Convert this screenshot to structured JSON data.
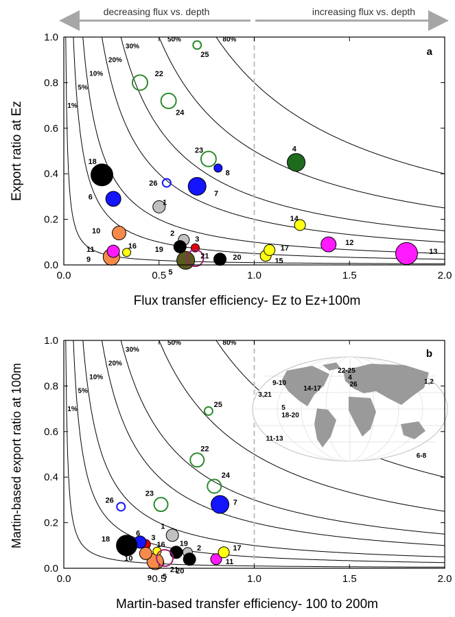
{
  "header": {
    "left": "decreasing flux vs. depth",
    "right": "increasing flux vs. depth",
    "arrow_color": "#a6a6a6"
  },
  "colors": {
    "black": "#000000",
    "gray": "#c0c0c0",
    "blue": "#1414ff",
    "orange": "#f58a4b",
    "magenta": "#ff1aff",
    "yellow": "#ffff10",
    "green": "#2b8a2b",
    "darkgreen": "#1e6b1e",
    "olive": "#5a5a1e",
    "red": "#e00000",
    "purple": "#9c1f70"
  },
  "chart_data": [
    {
      "type": "scatter",
      "panel": "a",
      "xlabel": "Flux transfer efficiency- Ez to Ez+100m",
      "ylabel": "Export ratio at Ez",
      "xlim": [
        0,
        2
      ],
      "ylim": [
        0,
        1
      ],
      "xticks": [
        "0.0",
        "0.5",
        "1.0",
        "1.5",
        "2.0"
      ],
      "yticks": [
        "0.0",
        "0.2",
        "0.4",
        "0.6",
        "0.8",
        "1.0"
      ],
      "vline": 1.0,
      "isolines": [
        {
          "value": 0.01,
          "label": "1%",
          "label_x": 0.045,
          "label_y": 0.69
        },
        {
          "value": 0.05,
          "label": "5%",
          "label_x": 0.1,
          "label_y": 0.77
        },
        {
          "value": 0.1,
          "label": "10%",
          "label_x": 0.17,
          "label_y": 0.83
        },
        {
          "value": 0.2,
          "label": "20%",
          "label_x": 0.27,
          "label_y": 0.89
        },
        {
          "value": 0.3,
          "label": "30%",
          "label_x": 0.36,
          "label_y": 0.95
        },
        {
          "value": 0.5,
          "label": "50%",
          "label_x": 0.58,
          "label_y": 0.98
        },
        {
          "value": 0.8,
          "label": "80%",
          "label_x": 0.87,
          "label_y": 0.98
        }
      ],
      "points": [
        {
          "id": "1",
          "x": 0.5,
          "y": 0.255,
          "size": 9,
          "color": "gray",
          "filled": true,
          "lx": 0.03,
          "ly": 0.02
        },
        {
          "id": "2",
          "x": 0.63,
          "y": 0.11,
          "size": 8,
          "color": "gray",
          "filled": true,
          "lx": -0.06,
          "ly": 0.03
        },
        {
          "id": "3",
          "x": 0.69,
          "y": 0.075,
          "size": 6,
          "color": "red",
          "filled": true,
          "lx": 0.01,
          "ly": 0.04
        },
        {
          "id": "4",
          "x": 1.22,
          "y": 0.45,
          "size": 13,
          "color": "darkgreen",
          "filled": true,
          "lx": -0.01,
          "ly": 0.06
        },
        {
          "id": "5",
          "x": 0.64,
          "y": 0.02,
          "size": 13,
          "color": "olive",
          "filled": true,
          "lx": -0.08,
          "ly": -0.05
        },
        {
          "id": "6",
          "x": 0.26,
          "y": 0.29,
          "size": 11,
          "color": "blue",
          "filled": true,
          "lx": -0.12,
          "ly": 0.01
        },
        {
          "id": "7",
          "x": 0.7,
          "y": 0.345,
          "size": 13,
          "color": "blue",
          "filled": true,
          "lx": 0.1,
          "ly": -0.03
        },
        {
          "id": "8",
          "x": 0.81,
          "y": 0.425,
          "size": 6,
          "color": "blue",
          "filled": true,
          "lx": 0.05,
          "ly": -0.02
        },
        {
          "id": "9",
          "x": 0.25,
          "y": 0.035,
          "size": 12,
          "color": "orange",
          "filled": true,
          "lx": -0.12,
          "ly": -0.01
        },
        {
          "id": "10",
          "x": 0.29,
          "y": 0.14,
          "size": 10,
          "color": "orange",
          "filled": true,
          "lx": -0.12,
          "ly": 0.01
        },
        {
          "id": "11",
          "x": 0.26,
          "y": 0.06,
          "size": 9,
          "color": "magenta",
          "filled": true,
          "lx": -0.12,
          "ly": 0.01
        },
        {
          "id": "12",
          "x": 1.39,
          "y": 0.09,
          "size": 11,
          "color": "magenta",
          "filled": true,
          "lx": 0.11,
          "ly": 0.01
        },
        {
          "id": "13",
          "x": 1.8,
          "y": 0.05,
          "size": 16,
          "color": "magenta",
          "filled": true,
          "lx": 0.14,
          "ly": 0.01
        },
        {
          "id": "14",
          "x": 1.24,
          "y": 0.175,
          "size": 8,
          "color": "yellow",
          "filled": true,
          "lx": -0.03,
          "ly": 0.03
        },
        {
          "id": "15",
          "x": 1.06,
          "y": 0.04,
          "size": 8,
          "color": "yellow",
          "filled": true,
          "lx": 0.07,
          "ly": -0.02
        },
        {
          "id": "16",
          "x": 0.33,
          "y": 0.055,
          "size": 6,
          "color": "yellow",
          "filled": true,
          "lx": 0.03,
          "ly": 0.03
        },
        {
          "id": "17",
          "x": 1.08,
          "y": 0.065,
          "size": 8,
          "color": "yellow",
          "filled": true,
          "lx": 0.08,
          "ly": 0.01
        },
        {
          "id": "18",
          "x": 0.2,
          "y": 0.395,
          "size": 16,
          "color": "black",
          "filled": true,
          "lx": -0.05,
          "ly": 0.06
        },
        {
          "id": "19",
          "x": 0.61,
          "y": 0.08,
          "size": 9,
          "color": "black",
          "filled": true,
          "lx": -0.11,
          "ly": -0.01
        },
        {
          "id": "20",
          "x": 0.82,
          "y": 0.025,
          "size": 9,
          "color": "black",
          "filled": true,
          "lx": 0.09,
          "ly": 0.01
        },
        {
          "id": "21",
          "x": 0.69,
          "y": 0.03,
          "size": 12,
          "color": "purple",
          "filled": false,
          "lx": 0.05,
          "ly": 0.01
        },
        {
          "id": "22",
          "x": 0.4,
          "y": 0.8,
          "size": 11,
          "color": "green",
          "filled": false,
          "lx": 0.1,
          "ly": 0.04
        },
        {
          "id": "23",
          "x": 0.76,
          "y": 0.465,
          "size": 11,
          "color": "green",
          "filled": false,
          "lx": -0.05,
          "ly": 0.04
        },
        {
          "id": "24",
          "x": 0.55,
          "y": 0.72,
          "size": 11,
          "color": "green",
          "filled": false,
          "lx": 0.06,
          "ly": -0.05
        },
        {
          "id": "25",
          "x": 0.7,
          "y": 0.965,
          "size": 6,
          "color": "green",
          "filled": false,
          "lx": 0.04,
          "ly": -0.04
        },
        {
          "id": "26",
          "x": 0.54,
          "y": 0.36,
          "size": 6,
          "color": "blue",
          "filled": false,
          "lx": -0.07,
          "ly": 0.0
        }
      ]
    },
    {
      "type": "scatter",
      "panel": "b",
      "xlabel": "Martin-based transfer efficiency- 100 to 200m",
      "ylabel": "Martin-based export ratio at 100m",
      "xlim": [
        0,
        2
      ],
      "ylim": [
        0,
        1
      ],
      "xticks": [
        "0.0",
        "0.5",
        "1.0",
        "1.5",
        "2.0"
      ],
      "yticks": [
        "0.0",
        "0.2",
        "0.4",
        "0.6",
        "0.8",
        "1.0"
      ],
      "vline": 1.0,
      "isolines": [
        {
          "value": 0.01,
          "label": "1%",
          "label_x": 0.045,
          "label_y": 0.69
        },
        {
          "value": 0.05,
          "label": "5%",
          "label_x": 0.1,
          "label_y": 0.77
        },
        {
          "value": 0.1,
          "label": "10%",
          "label_x": 0.17,
          "label_y": 0.83
        },
        {
          "value": 0.2,
          "label": "20%",
          "label_x": 0.27,
          "label_y": 0.89
        },
        {
          "value": 0.3,
          "label": "30%",
          "label_x": 0.36,
          "label_y": 0.95
        },
        {
          "value": 0.5,
          "label": "50%",
          "label_x": 0.58,
          "label_y": 0.98
        },
        {
          "value": 0.8,
          "label": "80%",
          "label_x": 0.87,
          "label_y": 0.98
        }
      ],
      "points": [
        {
          "id": "1",
          "x": 0.57,
          "y": 0.145,
          "size": 9,
          "color": "gray",
          "filled": true,
          "lx": -0.05,
          "ly": 0.04
        },
        {
          "id": "2",
          "x": 0.65,
          "y": 0.07,
          "size": 7,
          "color": "gray",
          "filled": true,
          "lx": 0.06,
          "ly": 0.02
        },
        {
          "id": "3",
          "x": 0.43,
          "y": 0.105,
          "size": 7,
          "color": "red",
          "filled": true,
          "lx": 0.04,
          "ly": 0.03
        },
        {
          "id": "5",
          "x": 0.5,
          "y": 0.025,
          "size": 7,
          "color": "olive",
          "filled": true,
          "lx": 0.03,
          "ly": -0.06
        },
        {
          "id": "6",
          "x": 0.4,
          "y": 0.115,
          "size": 9,
          "color": "blue",
          "filled": true,
          "lx": -0.01,
          "ly": 0.04
        },
        {
          "id": "7",
          "x": 0.82,
          "y": 0.28,
          "size": 13,
          "color": "blue",
          "filled": true,
          "lx": 0.08,
          "ly": 0.01
        },
        {
          "id": "9",
          "x": 0.48,
          "y": 0.03,
          "size": 12,
          "color": "orange",
          "filled": true,
          "lx": -0.03,
          "ly": -0.07
        },
        {
          "id": "10",
          "x": 0.43,
          "y": 0.065,
          "size": 9,
          "color": "orange",
          "filled": true,
          "lx": -0.09,
          "ly": -0.02
        },
        {
          "id": "11",
          "x": 0.8,
          "y": 0.04,
          "size": 8,
          "color": "magenta",
          "filled": true,
          "lx": 0.07,
          "ly": -0.01
        },
        {
          "id": "16",
          "x": 0.49,
          "y": 0.075,
          "size": 6,
          "color": "yellow",
          "filled": true,
          "lx": 0.02,
          "ly": 0.03
        },
        {
          "id": "17",
          "x": 0.84,
          "y": 0.07,
          "size": 8,
          "color": "yellow",
          "filled": true,
          "lx": 0.07,
          "ly": 0.02
        },
        {
          "id": "18",
          "x": 0.33,
          "y": 0.1,
          "size": 15,
          "color": "black",
          "filled": true,
          "lx": -0.11,
          "ly": 0.03
        },
        {
          "id": "19",
          "x": 0.59,
          "y": 0.07,
          "size": 9,
          "color": "black",
          "filled": true,
          "lx": 0.04,
          "ly": 0.04
        },
        {
          "id": "20",
          "x": 0.66,
          "y": 0.04,
          "size": 9,
          "color": "black",
          "filled": true,
          "lx": -0.05,
          "ly": -0.05
        },
        {
          "id": "21",
          "x": 0.53,
          "y": 0.045,
          "size": 12,
          "color": "purple",
          "filled": false,
          "lx": 0.05,
          "ly": -0.05
        },
        {
          "id": "22",
          "x": 0.7,
          "y": 0.475,
          "size": 10,
          "color": "green",
          "filled": false,
          "lx": 0.04,
          "ly": 0.05
        },
        {
          "id": "23",
          "x": 0.51,
          "y": 0.28,
          "size": 10,
          "color": "green",
          "filled": false,
          "lx": -0.06,
          "ly": 0.05
        },
        {
          "id": "24",
          "x": 0.79,
          "y": 0.36,
          "size": 10,
          "color": "green",
          "filled": false,
          "lx": 0.06,
          "ly": 0.05
        },
        {
          "id": "25",
          "x": 0.76,
          "y": 0.69,
          "size": 6,
          "color": "green",
          "filled": false,
          "lx": 0.05,
          "ly": 0.03
        },
        {
          "id": "26",
          "x": 0.3,
          "y": 0.27,
          "size": 6,
          "color": "blue",
          "filled": false,
          "lx": -0.06,
          "ly": 0.03
        }
      ],
      "inset_map": {
        "labels": [
          "22-25",
          "4",
          "26",
          "9-10",
          "14-17",
          "1,2",
          "3,21",
          "5",
          "18-20",
          "11-13",
          "6-8"
        ]
      }
    }
  ]
}
